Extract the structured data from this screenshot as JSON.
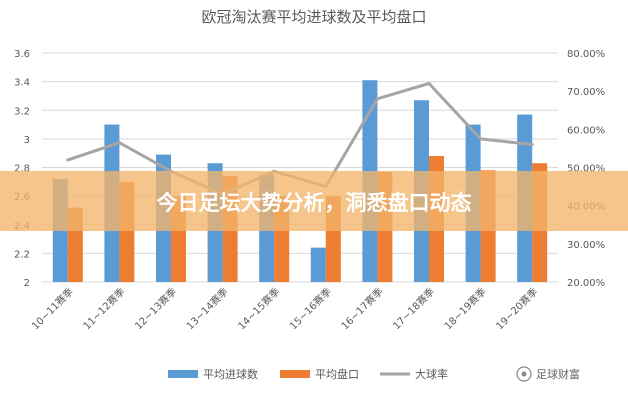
{
  "chart_data": {
    "type": "bar",
    "title": "欧冠淘汰赛平均进球数及平均盘口",
    "categories": [
      "10~11赛季",
      "11~12赛季",
      "12~13赛季",
      "13~14赛季",
      "14~15赛季",
      "15~16赛季",
      "16~17赛季",
      "17~18赛季",
      "18~19赛季",
      "19~20赛季"
    ],
    "series": [
      {
        "name": "平均进球数",
        "type": "bar",
        "axis": "left",
        "color": "#5b9bd5",
        "values": [
          2.72,
          3.1,
          2.89,
          2.83,
          2.75,
          2.24,
          3.41,
          3.27,
          3.1,
          3.17
        ]
      },
      {
        "name": "平均盘口",
        "type": "bar",
        "axis": "left",
        "color": "#ed7d31",
        "values": [
          2.52,
          2.7,
          2.6,
          2.74,
          2.6,
          2.6,
          2.77,
          2.88,
          2.78,
          2.83
        ]
      },
      {
        "name": "大球率",
        "type": "line",
        "axis": "right",
        "color": "#a5a5a5",
        "values": [
          0.52,
          0.565,
          0.49,
          0.43,
          0.49,
          0.45,
          0.68,
          0.72,
          0.575,
          0.56
        ]
      }
    ],
    "y_left": {
      "min": 2,
      "max": 3.6,
      "ticks": [
        "2",
        "2.2",
        "2.4",
        "2.6",
        "2.8",
        "3",
        "3.2",
        "3.4",
        "3.6"
      ]
    },
    "y_right": {
      "min": 0.2,
      "max": 0.8,
      "ticks": [
        "20.00%",
        "30.00%",
        "40.00%",
        "50.00%",
        "60.00%",
        "70.00%",
        "80.00%"
      ]
    },
    "grid": true,
    "legend": "bottom"
  },
  "banner": {
    "text": "今日足坛大势分析，洞悉盘口动态"
  },
  "watermark": {
    "text": "足球财富"
  }
}
